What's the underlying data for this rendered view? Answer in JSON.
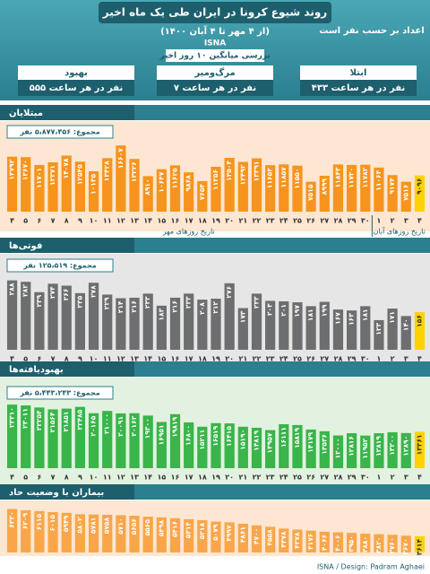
{
  "header": {
    "title": "روند شیوع کرونا در ایران طی یک ماه اخیر",
    "subtitle": "(از ۴ مهر تا ۴ آبان ۱۴۰۰)",
    "source": "ISNA",
    "unit_note": "اعداد بر حسب نفر است",
    "average_note": "بررسی میانگین ۱۰ روز اخیر"
  },
  "summary": [
    {
      "label": "بهبود",
      "text": "۵۵۵ نفر در هر ساعت"
    },
    {
      "label": "مرگ‌ومیر",
      "text": "۷ نفر در هر ساعت"
    },
    {
      "label": "ابتلا",
      "text": "۴۳۳ نفر در هر ساعت"
    }
  ],
  "chart_data": [
    {
      "type": "bar",
      "title": "مبتلایان",
      "total": "مجموع: ۵،۸۷۷،۴۵۶ نفر",
      "color": "#f7941d",
      "highlight_color": "#ffd200",
      "ylim": [
        0,
        18000
      ],
      "x_groups": [
        "تاریخ روزهای مهر",
        "تاریخ روزهای آبان"
      ],
      "categories": [
        "۴",
        "۵",
        "۶",
        "۷",
        "۸",
        "۹",
        "۱۰",
        "۱۱",
        "۱۲",
        "۱۳",
        "۱۴",
        "۱۵",
        "۱۶",
        "۱۷",
        "۱۸",
        "۱۹",
        "۲۰",
        "۲۱",
        "۲۲",
        "۲۳",
        "۲۴",
        "۲۵",
        "۲۶",
        "۲۷",
        "۲۸",
        "۲۹",
        "۳۰",
        "۱",
        "۲",
        "۳",
        "۴"
      ],
      "values": [
        13792,
        13670,
        11701,
        12371,
        14078,
        12545,
        10135,
        13428,
        16607,
        13226,
        8910,
        10647,
        11625,
        9868,
        7654,
        11256,
        13504,
        12492,
        13391,
        11653,
        11857,
        11550,
        7515,
        8999,
        11843,
        11720,
        11782,
        11064,
        9174,
        7516,
        9096
      ],
      "value_labels": [
        "۱۳۷۹۲",
        "۱۳۶۷۰",
        "۱۱۷۰۱",
        "۱۲۳۷۱",
        "۱۴۰۷۸",
        "۱۲۵۴۵",
        "۱۰۱۳۵",
        "۱۳۴۲۸",
        "۱۶۶۰۷",
        "۱۳۲۲۶",
        "۸۹۱۰",
        "۱۰۶۴۷",
        "۱۱۶۲۵",
        "۹۸۶۸",
        "۷۶۵۴",
        "۱۱۲۵۶",
        "۱۳۵۰۴",
        "۱۲۴۹۲",
        "۱۳۳۹۱",
        "۱۱۶۵۳",
        "۱۱۸۵۷",
        "۱۱۵۵۰",
        "۷۵۱۵",
        "۸۹۹۹",
        "۱۱۸۴۳",
        "۱۱۷۲۰",
        "۱۱۷۸۲",
        "۱۱۰۶۴",
        "۹۱۷۴",
        "۷۵۱۶",
        "۹۰۹۶"
      ]
    },
    {
      "type": "bar",
      "title": "فوتی‌ها",
      "total": "مجموع: ۱۲۵،۵۱۹ نفر",
      "color": "#6d6e70",
      "highlight_color": "#ffd200",
      "ylim": [
        0,
        320
      ],
      "categories": [
        "۴",
        "۵",
        "۶",
        "۷",
        "۸",
        "۹",
        "۱۰",
        "۱۱",
        "۱۲",
        "۱۳",
        "۱۴",
        "۱۵",
        "۱۶",
        "۱۷",
        "۱۸",
        "۱۹",
        "۲۰",
        "۲۱",
        "۲۲",
        "۲۳",
        "۲۴",
        "۲۵",
        "۲۶",
        "۲۷",
        "۲۸",
        "۲۹",
        "۳۰",
        "۱",
        "۲",
        "۳",
        "۴"
      ],
      "values": [
        288,
        282,
        239,
        274,
        266,
        235,
        278,
        229,
        214,
        216,
        233,
        183,
        216,
        233,
        208,
        212,
        276,
        173,
        233,
        203,
        201,
        197,
        181,
        199,
        167,
        163,
        181,
        123,
        171,
        140,
        156
      ],
      "value_labels": [
        "۲۸۸",
        "۲۸۲",
        "۲۳۹",
        "۲۷۴",
        "۲۶۶",
        "۲۳۵",
        "۲۷۸",
        "۲۲۹",
        "۲۱۴",
        "۲۱۶",
        "۲۳۳",
        "۱۸۳",
        "۲۱۶",
        "۲۳۳",
        "۲۰۸",
        "۲۱۲",
        "۲۷۶",
        "۱۷۳",
        "۲۳۳",
        "۲۰۳",
        "۲۰۱",
        "۱۹۷",
        "۱۸۱",
        "۱۹۹",
        "۱۶۷",
        "۱۶۳",
        "۱۸۱",
        "۱۲۳",
        "۱۷۱",
        "۱۴۰",
        "۱۵۶"
      ]
    },
    {
      "type": "bar",
      "title": "بهبودیافته‌ها",
      "total": "مجموع: ۵،۴۴۳،۲۴۳ نفر",
      "color": "#39b54a",
      "highlight_color": "#ffd200",
      "ylim": [
        0,
        25000
      ],
      "categories": [
        "۴",
        "۵",
        "۶",
        "۷",
        "۸",
        "۹",
        "۱۰",
        "۱۱",
        "۱۲",
        "۱۳",
        "۱۴",
        "۱۵",
        "۱۶",
        "۱۷",
        "۱۸",
        "۱۹",
        "۲۰",
        "۲۱",
        "۲۲",
        "۲۳",
        "۲۴",
        "۲۵",
        "۲۶",
        "۲۷",
        "۲۸",
        "۲۹",
        "۳۰",
        "۱",
        "۲",
        "۳",
        "۴"
      ],
      "values": [
        23310,
        23011,
        22254,
        21564,
        21851,
        22485,
        20165,
        21000,
        20091,
        20162,
        19300,
        16951,
        19819,
        16800,
        15211,
        16519,
        16415,
        15190,
        14819,
        13957,
        16111,
        15819,
        14179,
        13536,
        12000,
        12816,
        11952,
        12819,
        13200,
        12890,
        13361
      ],
      "value_labels": [
        "۲۳۳۱۰",
        "۲۳۰۱۱",
        "۲۲۲۵۴",
        "۲۱۵۶۴",
        "۲۱۸۵۱",
        "۲۲۴۸۵",
        "۲۰۱۶۵",
        "۲۱۰۰۰",
        "۲۰۰۹۱",
        "۲۰۱۶۲",
        "۱۹۳۰۰",
        "۱۶۹۵۱",
        "۱۹۸۱۹",
        "۱۶۸۰۰",
        "۱۵۲۱۱",
        "۱۶۵۱۹",
        "۱۶۴۱۵",
        "۱۵۱۹۰",
        "۱۴۸۱۹",
        "۱۳۹۵۷",
        "۱۶۱۱۱",
        "۱۵۸۱۹",
        "۱۴۱۷۹",
        "۱۳۵۳۶",
        "۱۲۰۰۰",
        "۱۲۸۱۶",
        "۱۱۹۵۲",
        "۱۲۸۱۹",
        "۱۳۲۰۰",
        "۱۲۸۹۰",
        "۱۳۳۶۱"
      ]
    },
    {
      "type": "bar",
      "title": "بیماران با وضعیت حاد",
      "color": "#f9a64a",
      "highlight_color": "#ffd200",
      "ylim": [
        2000,
        7000
      ],
      "values": [
        6330,
        6209,
        6115,
        6015,
        5949,
        5802,
        5781,
        5758,
        5710,
        5656,
        5565,
        5498,
        5416,
        5314,
        5218,
        5079,
        4997,
        4861,
        4700,
        4558,
        4378,
        4278,
        4176,
        4066,
        4006,
        3950,
        3880,
        3820,
        3760,
        3670,
        3614
      ],
      "value_labels": [
        "۶۳۳۰",
        "۶۲۰۹",
        "۶۱۱۵",
        "۶۰۱۵",
        "۵۹۴۹",
        "۵۸۰۲",
        "۵۷۸۱",
        "۵۷۵۸",
        "۵۷۱۰",
        "۵۶۵۶",
        "۵۵۶۵",
        "۵۴۹۸",
        "۵۴۱۶",
        "۵۳۱۴",
        "۵۲۱۸",
        "۵۰۷۹",
        "۴۹۹۷",
        "۴۸۶۱",
        "۴۷۰۰",
        "۴۵۵۸",
        "۴۳۷۸",
        "۴۲۷۸",
        "۴۱۷۶",
        "۴۰۶۶",
        "۴۰۰۶",
        "۳۹۵۰",
        "۳۸۸۰",
        "۳۸۲۰",
        "۳۷۶۰",
        "۳۶۷۰",
        "۳۶۱۴"
      ]
    }
  ],
  "footer": "ISNA / Design: Padram Aghaei"
}
